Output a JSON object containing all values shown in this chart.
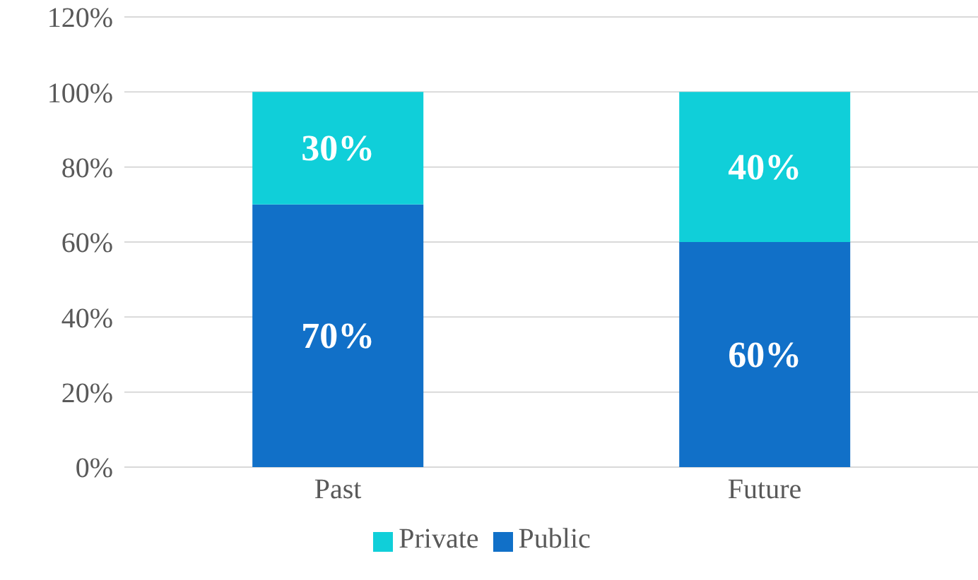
{
  "chart_data": {
    "type": "bar",
    "stacked": true,
    "categories": [
      "Past",
      "Future"
    ],
    "series": [
      {
        "name": "Public",
        "color": "#1170c8",
        "values": [
          70,
          60
        ],
        "value_labels": [
          "70%",
          "60%"
        ]
      },
      {
        "name": "Private",
        "color": "#10cfd9",
        "values": [
          30,
          40
        ],
        "value_labels": [
          "30%",
          "40%"
        ]
      }
    ],
    "ylim": [
      0,
      120
    ],
    "yticks": [
      {
        "value": 0,
        "label": "0%"
      },
      {
        "value": 20,
        "label": "20%"
      },
      {
        "value": 40,
        "label": "40%"
      },
      {
        "value": 60,
        "label": "60%"
      },
      {
        "value": 80,
        "label": "80%"
      },
      {
        "value": 100,
        "label": "100%"
      },
      {
        "value": 120,
        "label": "120%"
      }
    ],
    "grid": "y",
    "legend": "bottom"
  }
}
